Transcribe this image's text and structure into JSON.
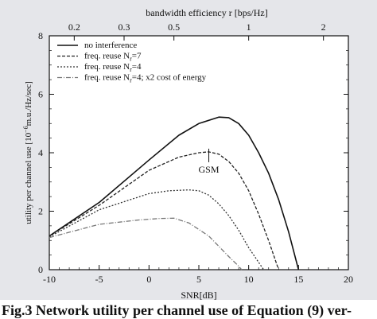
{
  "chart_data": {
    "type": "line",
    "xlabel": "SNR[dB]",
    "ylabel": "utility per channel use [10",
    "ylabel_exp": "−6",
    "ylabel_tail": "m.u./Hz/sec]",
    "top_axis_label": "bandwidth efficiency r [bps/Hz]",
    "xlim": [
      -10,
      20
    ],
    "ylim": [
      0,
      8
    ],
    "x_ticks": [
      "-10",
      "-5",
      "0",
      "5",
      "10",
      "15",
      "20"
    ],
    "y_ticks": [
      "0",
      "2",
      "4",
      "6",
      "8"
    ],
    "top_ticks": [
      {
        "label": "0.2",
        "snr": -7.5
      },
      {
        "label": "0.3",
        "snr": -2.5
      },
      {
        "label": "0.5",
        "snr": 2.5
      },
      {
        "label": "1",
        "snr": 10
      },
      {
        "label": "2",
        "snr": 17.5
      }
    ],
    "legend_position": "top-left",
    "grid": false,
    "series": [
      {
        "legend_main": "no interference",
        "legend_sub": "",
        "legend_tail": "",
        "style": "solid",
        "color": "#111111",
        "points": [
          [
            -10,
            1.15
          ],
          [
            -5,
            2.3
          ],
          [
            0,
            3.75
          ],
          [
            3,
            4.6
          ],
          [
            5,
            5.0
          ],
          [
            7,
            5.22
          ],
          [
            8,
            5.2
          ],
          [
            9,
            5.0
          ],
          [
            10,
            4.6
          ],
          [
            11,
            4.0
          ],
          [
            12,
            3.3
          ],
          [
            13,
            2.4
          ],
          [
            14,
            1.3
          ],
          [
            15,
            0.0
          ]
        ]
      },
      {
        "legend_main": "freq. reuse N",
        "legend_sub": "r",
        "legend_tail": "=7",
        "style": "dashed",
        "color": "#222222",
        "points": [
          [
            -10,
            1.15
          ],
          [
            -5,
            2.2
          ],
          [
            0,
            3.4
          ],
          [
            3,
            3.85
          ],
          [
            5,
            4.0
          ],
          [
            6,
            4.03
          ],
          [
            7,
            3.95
          ],
          [
            8,
            3.7
          ],
          [
            9,
            3.3
          ],
          [
            10,
            2.7
          ],
          [
            11,
            1.9
          ],
          [
            12,
            1.0
          ],
          [
            13,
            0.0
          ]
        ]
      },
      {
        "legend_main": "freq. reuse N",
        "legend_sub": "r",
        "legend_tail": "=4",
        "style": "dotted",
        "color": "#333333",
        "points": [
          [
            -10,
            1.12
          ],
          [
            -5,
            2.05
          ],
          [
            0,
            2.6
          ],
          [
            2,
            2.7
          ],
          [
            4,
            2.73
          ],
          [
            5,
            2.7
          ],
          [
            6,
            2.55
          ],
          [
            7,
            2.25
          ],
          [
            8,
            1.85
          ],
          [
            9,
            1.35
          ],
          [
            10,
            0.75
          ],
          [
            11,
            0.25
          ],
          [
            11.5,
            0.0
          ]
        ]
      },
      {
        "legend_main": "freq. reuse N",
        "legend_sub": "r",
        "legend_tail": "=4; x2 cost of energy",
        "style": "dotdash",
        "color": "#777777",
        "points": [
          [
            -10,
            1.1
          ],
          [
            -5,
            1.55
          ],
          [
            -1,
            1.7
          ],
          [
            1,
            1.75
          ],
          [
            2.5,
            1.76
          ],
          [
            4,
            1.6
          ],
          [
            6,
            1.15
          ],
          [
            7,
            0.8
          ],
          [
            8,
            0.45
          ],
          [
            9,
            0.12
          ],
          [
            9.3,
            0.0
          ]
        ]
      }
    ],
    "annotation": {
      "text": "GSM",
      "x": 6,
      "y": 4.03
    }
  },
  "caption": "Fig.3 Network utility per channel use of Equation (9) ver-"
}
